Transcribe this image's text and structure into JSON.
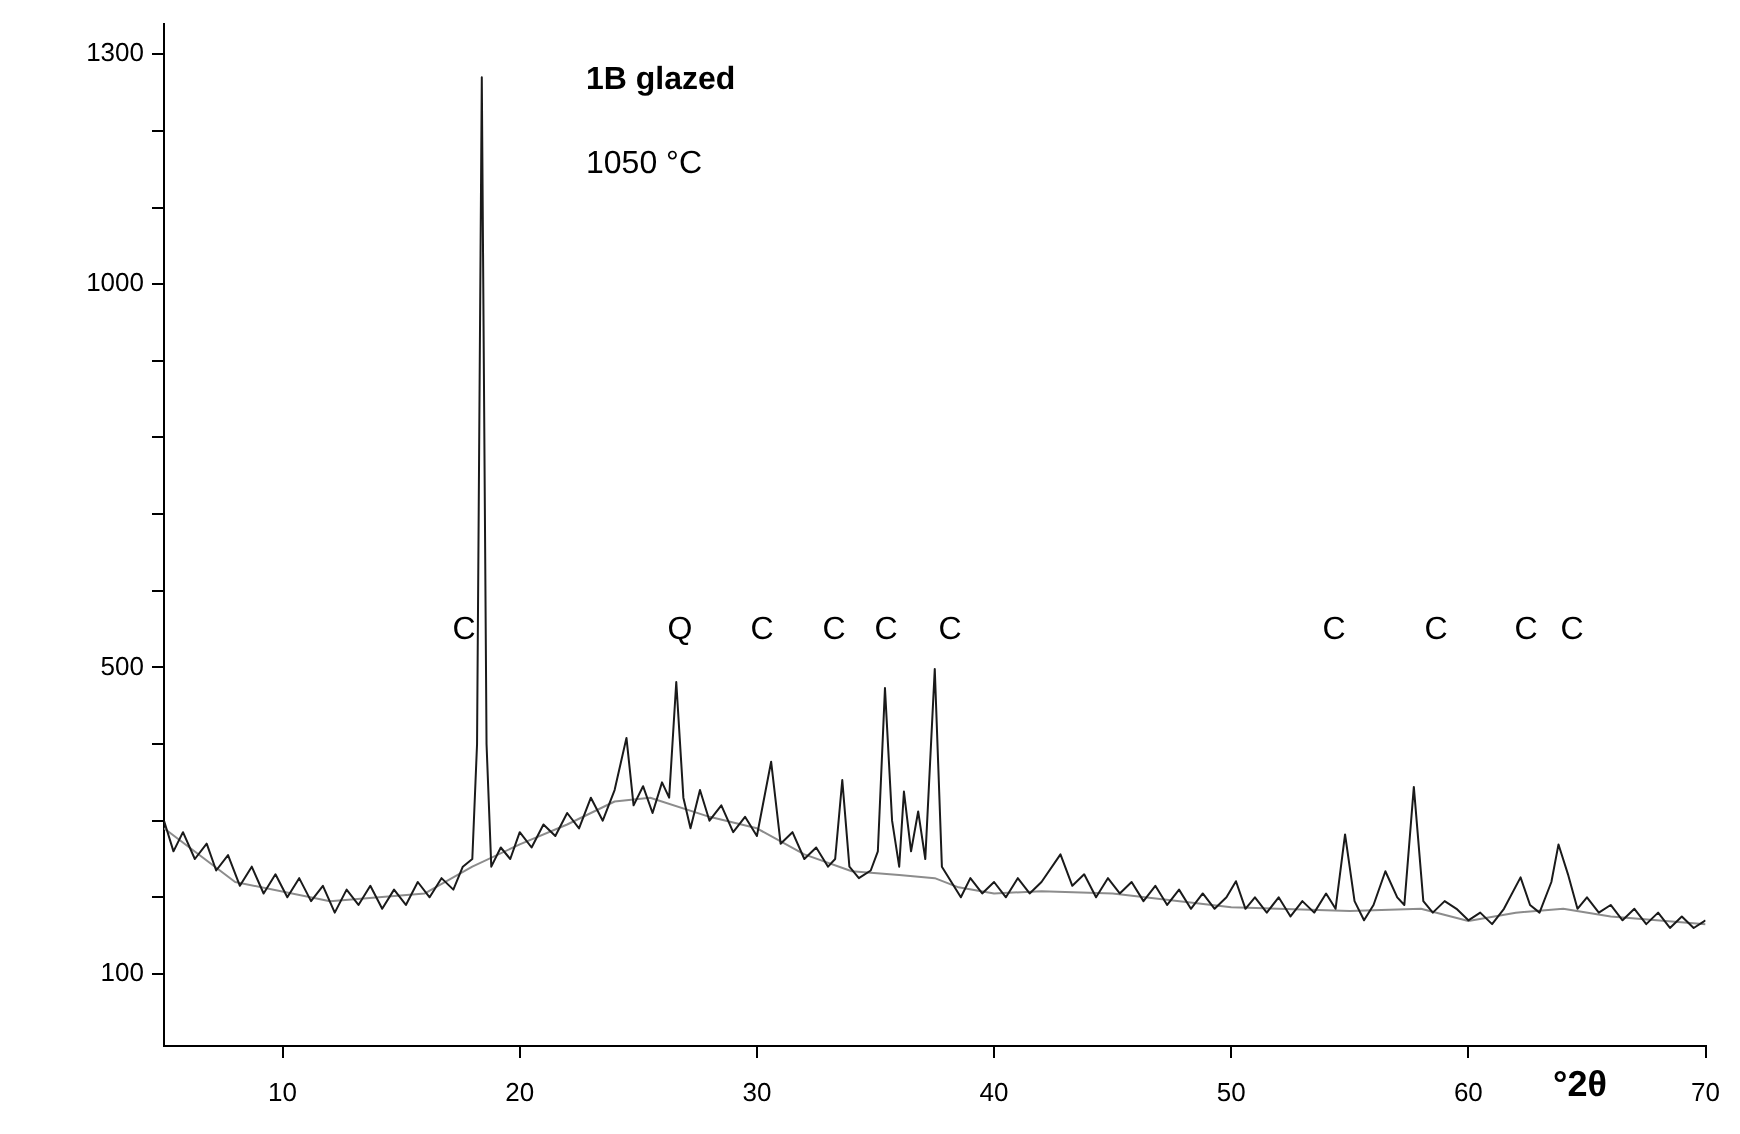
{
  "chart_data": {
    "type": "line",
    "xlabel": "°2θ",
    "xlim": [
      5,
      70
    ],
    "xticks": [
      10,
      20,
      30,
      40,
      50,
      60,
      70
    ],
    "ylim": [
      6,
      1340
    ],
    "yticks": [
      100,
      {
        "value": 200,
        "label": null
      },
      {
        "value": 300,
        "label": null
      },
      {
        "value": 400,
        "label": null
      },
      500,
      {
        "value": 600,
        "label": null
      },
      {
        "value": 700,
        "label": null
      },
      {
        "value": 800,
        "label": null
      },
      {
        "value": 900,
        "label": null
      },
      1000,
      {
        "value": 1100,
        "label": null
      },
      {
        "value": 1200,
        "label": null
      },
      1300
    ],
    "grid": false,
    "legend": false,
    "marker": "none",
    "line_style": "solid",
    "series": [
      {
        "color": "#1a1a1a",
        "x": [
          5,
          5.4,
          5.8,
          6.3,
          6.8,
          7.2,
          7.7,
          8.2,
          8.7,
          9.2,
          9.7,
          10.2,
          10.7,
          11.2,
          11.7,
          12.2,
          12.7,
          13.2,
          13.7,
          14.2,
          14.7,
          15.2,
          15.7,
          16.2,
          16.7,
          17.2,
          17.6,
          18.0,
          18.2,
          18.4,
          18.6,
          18.8,
          19.2,
          19.6,
          20.0,
          20.5,
          21.0,
          21.5,
          22.0,
          22.5,
          23.0,
          23.5,
          24.0,
          24.5,
          24.8,
          25.2,
          25.6,
          26.0,
          26.3,
          26.6,
          26.9,
          27.2,
          27.6,
          28.0,
          28.5,
          29.0,
          29.5,
          30.0,
          30.6,
          31.0,
          31.5,
          32.0,
          32.5,
          33.0,
          33.3,
          33.6,
          33.9,
          34.3,
          34.8,
          35.1,
          35.4,
          35.7,
          36.0,
          36.2,
          36.5,
          36.8,
          37.1,
          37.5,
          37.8,
          38.2,
          38.6,
          39.0,
          39.5,
          40.0,
          40.5,
          41.0,
          41.5,
          42.0,
          42.8,
          43.3,
          43.8,
          44.3,
          44.8,
          45.3,
          45.8,
          46.3,
          46.8,
          47.3,
          47.8,
          48.3,
          48.8,
          49.3,
          49.8,
          50.2,
          50.6,
          51.0,
          51.5,
          52.0,
          52.5,
          53.0,
          53.5,
          54.0,
          54.4,
          54.8,
          55.2,
          55.6,
          56.0,
          56.5,
          57.0,
          57.3,
          57.7,
          58.1,
          58.5,
          59.0,
          59.5,
          60.0,
          60.5,
          61.0,
          61.5,
          62.2,
          62.6,
          63.0,
          63.5,
          63.8,
          64.2,
          64.6,
          65.0,
          65.5,
          66.0,
          66.5,
          67.0,
          67.5,
          68.0,
          68.5,
          69.0,
          69.5,
          70
        ],
        "values": [
          300,
          260,
          285,
          250,
          270,
          235,
          255,
          215,
          240,
          205,
          230,
          200,
          225,
          195,
          215,
          180,
          210,
          190,
          215,
          185,
          210,
          190,
          220,
          200,
          225,
          210,
          240,
          250,
          400,
          1270,
          400,
          240,
          265,
          250,
          285,
          265,
          295,
          280,
          310,
          290,
          330,
          300,
          340,
          408,
          320,
          345,
          310,
          350,
          330,
          481,
          330,
          290,
          340,
          300,
          320,
          285,
          305,
          280,
          377,
          270,
          285,
          250,
          265,
          240,
          250,
          353,
          240,
          225,
          235,
          260,
          473,
          300,
          240,
          338,
          260,
          312,
          250,
          498,
          240,
          220,
          200,
          225,
          205,
          220,
          200,
          225,
          205,
          220,
          256,
          215,
          230,
          200,
          225,
          205,
          220,
          195,
          215,
          190,
          210,
          185,
          205,
          185,
          200,
          221,
          185,
          200,
          180,
          200,
          175,
          195,
          180,
          205,
          185,
          282,
          195,
          170,
          190,
          234,
          200,
          190,
          344,
          195,
          180,
          195,
          185,
          170,
          180,
          165,
          185,
          226,
          190,
          180,
          220,
          269,
          230,
          185,
          200,
          180,
          190,
          170,
          185,
          165,
          180,
          160,
          175,
          160,
          170
        ]
      },
      {
        "color": "#8c8c8c",
        "x": [
          5,
          8,
          12,
          16,
          18,
          20,
          22,
          24,
          25.5,
          28,
          30,
          32,
          34,
          36,
          37.5,
          38.5,
          40,
          42,
          45,
          50,
          55,
          58,
          60,
          62,
          64,
          66,
          70
        ],
        "values": [
          290,
          220,
          195,
          205,
          240,
          269,
          295,
          325,
          330,
          305,
          290,
          256,
          234,
          229,
          225,
          213,
          205,
          208,
          205,
          187,
          182,
          185,
          169,
          180,
          185,
          175,
          165
        ]
      }
    ],
    "annotations": [
      "1B glazed",
      "1050 °C",
      "C",
      "Q",
      "C",
      "C",
      "C",
      "C",
      "C",
      "C",
      "C",
      "C"
    ]
  }
}
